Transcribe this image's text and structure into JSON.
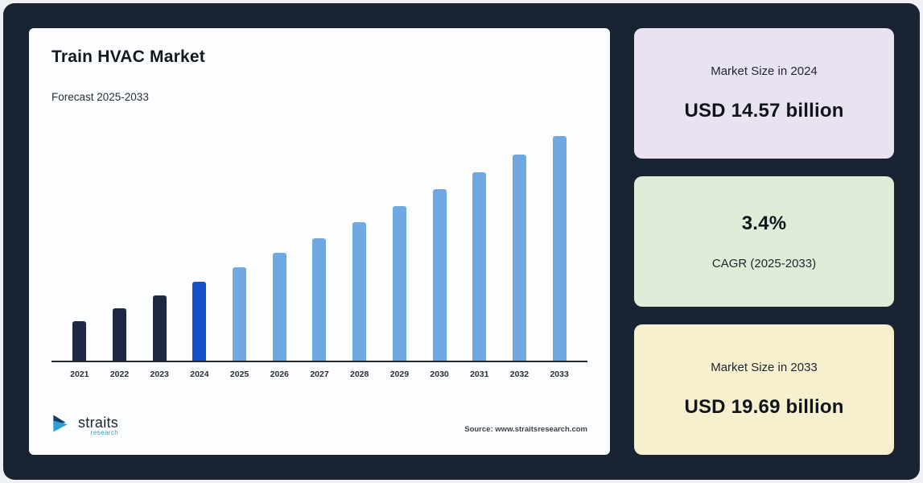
{
  "theme": {
    "page_bg": "#eef0f3",
    "panel_bg": "#1a2332",
    "card_bg": "#fcfdfe",
    "axis_color": "#23272e"
  },
  "chart": {
    "title": "Train HVAC Market",
    "subtitle": "Forecast 2025-2033",
    "source": "Source: www.straitsresearch.com",
    "logo": {
      "name": "straits",
      "sub": "research"
    }
  },
  "chart_data": {
    "type": "bar",
    "title": "Train HVAC Market",
    "subtitle": "Forecast 2025-2033",
    "unit": "USD billion",
    "categories": [
      "2021",
      "2022",
      "2023",
      "2024",
      "2025",
      "2026",
      "2027",
      "2028",
      "2029",
      "2030",
      "2031",
      "2032",
      "2033"
    ],
    "values": [
      13.18,
      13.63,
      14.09,
      14.57,
      15.07,
      15.58,
      16.11,
      16.66,
      17.22,
      17.81,
      18.41,
      19.04,
      19.69
    ],
    "known_values": {
      "2024": 14.57,
      "2033": 19.69,
      "cagr_2025_2033_pct": 3.4
    },
    "ylim": [
      11.8,
      20.0
    ],
    "grid": "off",
    "legend": "none",
    "bar_colors": [
      "#1e2842",
      "#1e2842",
      "#1e2842",
      "#1450c8",
      "#6fa8e3",
      "#6fa8e3",
      "#6fa8e3",
      "#6fa8e3",
      "#6fa8e3",
      "#6fa8e3",
      "#6fa8e3",
      "#6fa8e3",
      "#6fa8e3"
    ]
  },
  "stats": [
    {
      "label": "Market Size in 2024",
      "value": "USD 14.57 billion",
      "bg": "#e9e2f1"
    },
    {
      "label": "CAGR (2025-2033)",
      "value": "3.4%",
      "bg": "#dfedd8"
    },
    {
      "label": "Market Size in 2033",
      "value": "USD 19.69 billion",
      "bg": "#f7f0cf"
    }
  ]
}
